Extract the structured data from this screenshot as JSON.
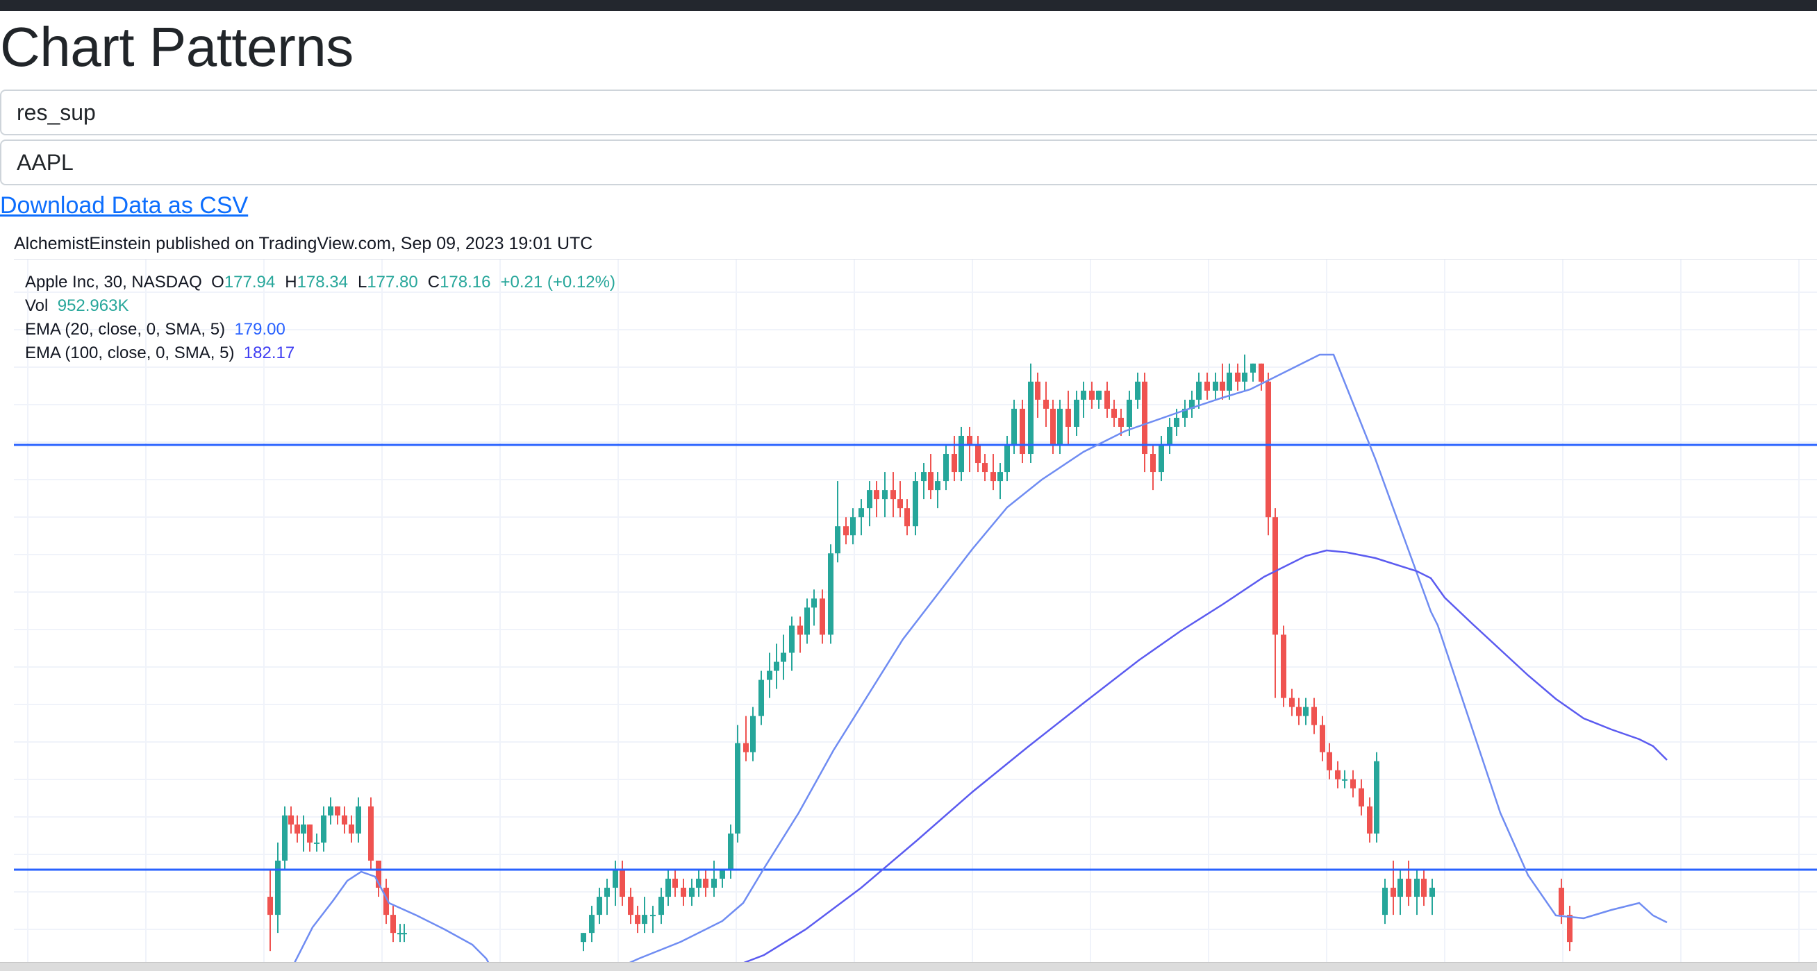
{
  "page": {
    "title": "Chart Patterns",
    "pattern_select": "res_sup",
    "ticker_select": "AAPL",
    "download_link": "Download Data as CSV",
    "attribution": "AlchemistEinstein published on TradingView.com, Sep 09, 2023 19:01 UTC"
  },
  "legend": {
    "instrument": "Apple Inc, 30, NASDAQ",
    "o_label": "O",
    "o": "177.94",
    "h_label": "H",
    "h": "178.34",
    "l_label": "L",
    "l": "177.80",
    "c_label": "C",
    "c": "178.16",
    "change": "+0.21 (+0.12%)",
    "vol_label": "Vol",
    "vol": "952.963K",
    "ema20_label": "EMA (20, close, 0, SMA, 5)",
    "ema20": "179.00",
    "ema100_label": "EMA (100, close, 0, SMA, 5)",
    "ema100": "182.17"
  },
  "chart_data": {
    "type": "candlestick",
    "resistance_level": 183.4,
    "support_level": 178.7,
    "ylim": [
      177.8,
      188.4
    ],
    "colors": {
      "up": "#26a69a",
      "down": "#ef5350",
      "level": "#2962ff",
      "ema20": "#6f8cf2",
      "ema100": "#5b5bf0"
    },
    "candles": [
      [
        178.4,
        178.7,
        177.8,
        178.2
      ],
      [
        178.2,
        179.0,
        178.0,
        178.8
      ],
      [
        178.8,
        179.4,
        178.7,
        179.3
      ],
      [
        179.3,
        179.4,
        179.1,
        179.2
      ],
      [
        179.2,
        179.3,
        179.0,
        179.1
      ],
      [
        179.1,
        179.3,
        178.9,
        179.2
      ],
      [
        179.2,
        179.2,
        178.9,
        179.0
      ],
      [
        179.0,
        179.1,
        178.9,
        179.0
      ],
      [
        179.0,
        179.4,
        178.9,
        179.3
      ],
      [
        179.3,
        179.5,
        179.2,
        179.4
      ],
      [
        179.4,
        179.4,
        179.2,
        179.3
      ],
      [
        179.3,
        179.4,
        179.1,
        179.2
      ],
      [
        179.2,
        179.3,
        179.0,
        179.1
      ],
      [
        179.1,
        179.5,
        179.0,
        179.4
      ],
      [
        179.4,
        179.5,
        178.7,
        178.8
      ],
      [
        178.8,
        178.8,
        178.4,
        178.5
      ],
      [
        178.5,
        178.6,
        178.1,
        178.2
      ],
      [
        178.2,
        178.3,
        177.9,
        178.0
      ],
      [
        178.0,
        178.1,
        177.9,
        178.0
      ],
      [
        178.0,
        178.1,
        177.9,
        178.0
      ],
      [
        177.9,
        178.0,
        177.8,
        178.0
      ],
      [
        178.0,
        178.3,
        177.9,
        178.2
      ],
      [
        178.2,
        178.5,
        178.1,
        178.4
      ],
      [
        178.4,
        178.6,
        178.2,
        178.5
      ],
      [
        178.5,
        178.8,
        178.3,
        178.7
      ],
      [
        178.7,
        178.8,
        178.3,
        178.4
      ],
      [
        178.4,
        178.5,
        178.1,
        178.2
      ],
      [
        178.2,
        178.3,
        178.0,
        178.1
      ],
      [
        178.1,
        178.4,
        178.0,
        178.2
      ],
      [
        178.2,
        178.3,
        178.0,
        178.2
      ],
      [
        178.2,
        178.5,
        178.1,
        178.4
      ],
      [
        178.4,
        178.7,
        178.3,
        178.6
      ],
      [
        178.6,
        178.7,
        178.4,
        178.5
      ],
      [
        178.5,
        178.6,
        178.3,
        178.4
      ],
      [
        178.4,
        178.6,
        178.3,
        178.5
      ],
      [
        178.5,
        178.7,
        178.4,
        178.6
      ],
      [
        178.6,
        178.7,
        178.4,
        178.5
      ],
      [
        178.5,
        178.8,
        178.4,
        178.6
      ],
      [
        178.6,
        178.7,
        178.5,
        178.7
      ],
      [
        178.7,
        179.2,
        178.6,
        179.1
      ],
      [
        179.1,
        180.3,
        179.0,
        180.1
      ],
      [
        180.1,
        180.4,
        179.9,
        180.0
      ],
      [
        180.0,
        180.5,
        179.9,
        180.4
      ],
      [
        180.4,
        180.9,
        180.3,
        180.8
      ],
      [
        180.8,
        181.1,
        180.6,
        180.9
      ],
      [
        180.9,
        181.2,
        180.7,
        181.0
      ],
      [
        181.0,
        181.3,
        180.8,
        181.1
      ],
      [
        181.1,
        181.5,
        180.9,
        181.4
      ],
      [
        181.4,
        181.5,
        181.1,
        181.3
      ],
      [
        181.3,
        181.7,
        181.2,
        181.6
      ],
      [
        181.6,
        181.8,
        181.4,
        181.7
      ],
      [
        181.7,
        181.8,
        181.2,
        181.3
      ],
      [
        181.3,
        182.3,
        181.2,
        182.2
      ],
      [
        182.2,
        183.0,
        182.1,
        182.5
      ],
      [
        182.5,
        182.6,
        182.3,
        182.4
      ],
      [
        182.4,
        182.7,
        182.3,
        182.6
      ],
      [
        182.6,
        182.8,
        182.4,
        182.7
      ],
      [
        182.7,
        183.0,
        182.5,
        182.9
      ],
      [
        182.9,
        183.0,
        182.6,
        182.8
      ],
      [
        182.8,
        183.1,
        182.6,
        182.9
      ],
      [
        182.9,
        183.1,
        182.6,
        182.8
      ],
      [
        182.8,
        183.0,
        182.6,
        182.7
      ],
      [
        182.7,
        182.8,
        182.4,
        182.5
      ],
      [
        182.5,
        183.1,
        182.4,
        183.0
      ],
      [
        183.0,
        183.2,
        182.8,
        183.1
      ],
      [
        183.1,
        183.3,
        182.8,
        182.9
      ],
      [
        182.9,
        183.1,
        182.7,
        183.0
      ],
      [
        183.0,
        183.4,
        182.9,
        183.3
      ],
      [
        183.3,
        183.5,
        183.0,
        183.1
      ],
      [
        183.1,
        183.6,
        183.0,
        183.5
      ],
      [
        183.5,
        183.6,
        183.1,
        183.4
      ],
      [
        183.4,
        183.5,
        183.1,
        183.2
      ],
      [
        183.2,
        183.3,
        183.0,
        183.1
      ],
      [
        183.1,
        183.3,
        182.9,
        183.0
      ],
      [
        183.0,
        183.2,
        182.8,
        183.1
      ],
      [
        183.1,
        183.5,
        183.0,
        183.4
      ],
      [
        183.4,
        183.9,
        183.3,
        183.8
      ],
      [
        183.8,
        183.9,
        183.2,
        183.3
      ],
      [
        183.3,
        184.3,
        183.2,
        184.1
      ],
      [
        184.1,
        184.2,
        183.7,
        183.9
      ],
      [
        183.9,
        184.1,
        183.6,
        183.8
      ],
      [
        183.8,
        183.9,
        183.3,
        183.4
      ],
      [
        183.4,
        183.9,
        183.3,
        183.8
      ],
      [
        183.8,
        184.0,
        183.4,
        183.6
      ],
      [
        183.6,
        184.0,
        183.5,
        183.9
      ],
      [
        183.9,
        184.1,
        183.7,
        184.0
      ],
      [
        184.0,
        184.1,
        183.8,
        183.9
      ],
      [
        183.9,
        184.0,
        183.8,
        184.0
      ],
      [
        184.0,
        184.1,
        183.7,
        183.8
      ],
      [
        183.8,
        183.9,
        183.6,
        183.7
      ],
      [
        183.7,
        183.8,
        183.5,
        183.6
      ],
      [
        183.6,
        184.0,
        183.5,
        183.9
      ],
      [
        183.9,
        184.2,
        183.8,
        184.1
      ],
      [
        184.1,
        184.2,
        183.1,
        183.3
      ],
      [
        183.3,
        183.4,
        182.9,
        183.1
      ],
      [
        183.1,
        183.5,
        183.0,
        183.4
      ],
      [
        183.4,
        183.7,
        183.3,
        183.6
      ],
      [
        183.6,
        183.8,
        183.5,
        183.7
      ],
      [
        183.7,
        183.9,
        183.6,
        183.8
      ],
      [
        183.8,
        184.0,
        183.7,
        183.9
      ],
      [
        183.9,
        184.2,
        183.8,
        184.1
      ],
      [
        184.1,
        184.2,
        183.9,
        184.0
      ],
      [
        184.0,
        184.2,
        183.9,
        184.1
      ],
      [
        184.1,
        184.3,
        183.9,
        184.0
      ],
      [
        184.0,
        184.3,
        183.9,
        184.2
      ],
      [
        184.2,
        184.3,
        184.0,
        184.1
      ],
      [
        184.1,
        184.4,
        184.0,
        184.2
      ],
      [
        184.2,
        184.3,
        184.1,
        184.3
      ],
      [
        184.3,
        184.3,
        184.0,
        184.1
      ],
      [
        184.1,
        184.2,
        182.4,
        182.6
      ],
      [
        182.6,
        182.7,
        180.6,
        181.3
      ],
      [
        181.3,
        181.4,
        180.5,
        180.6
      ],
      [
        180.6,
        180.7,
        180.4,
        180.5
      ],
      [
        180.5,
        180.6,
        180.3,
        180.4
      ],
      [
        180.4,
        180.6,
        180.3,
        180.5
      ],
      [
        180.5,
        180.6,
        180.2,
        180.3
      ],
      [
        180.3,
        180.4,
        179.9,
        180.0
      ],
      [
        180.0,
        180.1,
        179.7,
        179.8
      ],
      [
        179.8,
        179.9,
        179.6,
        179.7
      ],
      [
        179.7,
        179.8,
        179.6,
        179.7
      ],
      [
        179.7,
        179.8,
        179.5,
        179.6
      ],
      [
        179.6,
        179.7,
        179.3,
        179.4
      ],
      [
        179.4,
        179.5,
        179.0,
        179.1
      ],
      [
        179.1,
        180.0,
        179.0,
        179.9
      ],
      [
        178.2,
        178.6,
        178.1,
        178.5
      ],
      [
        178.5,
        178.8,
        178.2,
        178.4
      ],
      [
        178.4,
        178.7,
        178.2,
        178.6
      ],
      [
        178.6,
        178.8,
        178.3,
        178.4
      ],
      [
        178.4,
        178.7,
        178.2,
        178.6
      ],
      [
        178.6,
        178.7,
        178.3,
        178.4
      ],
      [
        178.4,
        178.6,
        178.2,
        178.5
      ],
      [
        178.5,
        178.6,
        178.1,
        178.2
      ],
      [
        178.2,
        178.3,
        177.8,
        177.9
      ]
    ],
    "candle_x": [
      389,
      400,
      410,
      419,
      428,
      437,
      446,
      456,
      466,
      476,
      486,
      496,
      506,
      516,
      534,
      545,
      556,
      566,
      576,
      582,
      840,
      852,
      863,
      874,
      886,
      896,
      908,
      918,
      928,
      940,
      952,
      962,
      972,
      984,
      996,
      1006,
      1016,
      1028,
      1040,
      1052,
      1062,
      1074,
      1084,
      1096,
      1108,
      1118,
      1128,
      1140,
      1152,
      1162,
      1172,
      1184,
      1196,
      1206,
      1218,
      1228,
      1240,
      1252,
      1262,
      1274,
      1286,
      1296,
      1306,
      1318,
      1330,
      1340,
      1350,
      1362,
      1374,
      1384,
      1396,
      1408,
      1418,
      1430,
      1440,
      1450,
      1460,
      1472,
      1484,
      1494,
      1506,
      1516,
      1526,
      1538,
      1550,
      1560,
      1572,
      1582,
      1594,
      1604,
      1614,
      1626,
      1638,
      1648,
      1660,
      1672,
      1684,
      1694,
      1706,
      1716,
      1726,
      1738,
      1750,
      1760,
      1770,
      1782,
      1792,
      1804,
      1816,
      1826,
      1836,
      1848,
      1860,
      1870,
      1880,
      1892,
      1904,
      1914,
      1926,
      1936,
      1948,
      1960,
      1972,
      1982,
      1994,
      2006,
      2016,
      2028,
      2040,
      2050,
      2062,
      2248,
      2260,
      2270,
      2280,
      2292,
      2304,
      2316,
      2326,
      2338
    ],
    "ema20": [
      [
        418,
        1398
      ],
      [
        450,
        1335
      ],
      [
        480,
        1296
      ],
      [
        500,
        1268
      ],
      [
        520,
        1255
      ],
      [
        540,
        1262
      ],
      [
        560,
        1300
      ],
      [
        600,
        1318
      ],
      [
        640,
        1338
      ],
      [
        680,
        1360
      ],
      [
        700,
        1380
      ],
      [
        710,
        1398
      ]
    ],
    "ema20_b": [
      [
        880,
        1398
      ],
      [
        920,
        1380
      ],
      [
        980,
        1356
      ],
      [
        1040,
        1326
      ],
      [
        1070,
        1300
      ],
      [
        1100,
        1250
      ],
      [
        1150,
        1170
      ],
      [
        1200,
        1080
      ],
      [
        1250,
        1000
      ],
      [
        1300,
        920
      ],
      [
        1350,
        855
      ],
      [
        1400,
        790
      ],
      [
        1450,
        730
      ],
      [
        1500,
        690
      ],
      [
        1560,
        650
      ],
      [
        1620,
        620
      ],
      [
        1700,
        592
      ],
      [
        1760,
        572
      ],
      [
        1800,
        560
      ],
      [
        1840,
        540
      ],
      [
        1880,
        520
      ],
      [
        1900,
        510
      ],
      [
        1920,
        510
      ],
      [
        1940,
        560
      ],
      [
        1980,
        660
      ],
      [
        2020,
        770
      ],
      [
        2060,
        880
      ],
      [
        2070,
        900
      ],
      [
        2090,
        960
      ],
      [
        2120,
        1050
      ],
      [
        2160,
        1170
      ],
      [
        2200,
        1260
      ],
      [
        2240,
        1318
      ],
      [
        2280,
        1322
      ],
      [
        2320,
        1310
      ],
      [
        2360,
        1300
      ],
      [
        2380,
        1318
      ],
      [
        2400,
        1328
      ]
    ],
    "ema100": [
      [
        1040,
        1398
      ],
      [
        1100,
        1375
      ],
      [
        1160,
        1338
      ],
      [
        1240,
        1278
      ],
      [
        1320,
        1210
      ],
      [
        1400,
        1140
      ],
      [
        1480,
        1075
      ],
      [
        1560,
        1012
      ],
      [
        1640,
        950
      ],
      [
        1700,
        908
      ],
      [
        1760,
        870
      ],
      [
        1820,
        830
      ],
      [
        1880,
        800
      ],
      [
        1910,
        792
      ],
      [
        1940,
        795
      ],
      [
        1980,
        803
      ],
      [
        2040,
        822
      ],
      [
        2060,
        832
      ],
      [
        2080,
        860
      ],
      [
        2120,
        898
      ],
      [
        2160,
        935
      ],
      [
        2200,
        972
      ],
      [
        2240,
        1006
      ],
      [
        2280,
        1034
      ],
      [
        2320,
        1050
      ],
      [
        2360,
        1064
      ],
      [
        2380,
        1074
      ],
      [
        2400,
        1094
      ]
    ]
  }
}
